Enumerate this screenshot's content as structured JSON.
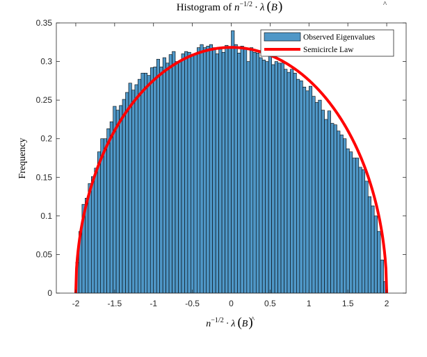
{
  "chart_data": {
    "type": "bar",
    "title": "Histogram of n^{-1/2} · λ(B̂)",
    "title_parts": {
      "prefix": "Histogram of ",
      "n": "n",
      "exponent": "−1/2",
      "dot": "·",
      "lambda": "λ",
      "open": "(",
      "b": "B",
      "hat": "^",
      "close": ")"
    },
    "xlabel_parts": {
      "n": "n",
      "exponent": "−1/2",
      "dot": "·",
      "lambda": "λ",
      "open": "(",
      "b": "B",
      "hat": "^",
      "close": ")"
    },
    "ylabel": "Frequency",
    "xlim": [
      -2.25,
      2.25
    ],
    "ylim": [
      0,
      0.35
    ],
    "x_ticks": [
      -2,
      -1.5,
      -1,
      -0.5,
      0,
      0.5,
      1,
      1.5,
      2
    ],
    "x_tick_labels": [
      "-2",
      "-1.5",
      "-1",
      "-0.5",
      "0",
      "0.5",
      "1",
      "1.5",
      "2"
    ],
    "y_ticks": [
      0,
      0.05,
      0.1,
      0.15,
      0.2,
      0.25,
      0.3,
      0.35
    ],
    "y_tick_labels": [
      "0",
      "0.05",
      "0.1",
      "0.15",
      "0.2",
      "0.25",
      "0.3",
      "0.35"
    ],
    "bin_start": -2,
    "bin_width": 0.04,
    "bin_values": [
      0.04,
      0.08,
      0.115,
      0.123,
      0.142,
      0.151,
      0.162,
      0.183,
      0.2,
      0.2,
      0.213,
      0.222,
      0.242,
      0.237,
      0.243,
      0.251,
      0.26,
      0.272,
      0.263,
      0.27,
      0.277,
      0.285,
      0.285,
      0.282,
      0.292,
      0.293,
      0.303,
      0.293,
      0.305,
      0.298,
      0.309,
      0.313,
      0.3,
      0.3,
      0.31,
      0.313,
      0.312,
      0.309,
      0.31,
      0.318,
      0.322,
      0.318,
      0.32,
      0.322,
      0.318,
      0.31,
      0.316,
      0.312,
      0.321,
      0.319,
      0.34,
      0.322,
      0.311,
      0.32,
      0.316,
      0.3,
      0.318,
      0.312,
      0.311,
      0.305,
      0.302,
      0.3,
      0.31,
      0.296,
      0.3,
      0.298,
      0.298,
      0.29,
      0.286,
      0.29,
      0.285,
      0.277,
      0.275,
      0.267,
      0.262,
      0.268,
      0.255,
      0.247,
      0.25,
      0.237,
      0.225,
      0.236,
      0.22,
      0.218,
      0.21,
      0.205,
      0.2,
      0.187,
      0.183,
      0.175,
      0.175,
      0.163,
      0.16,
      0.145,
      0.125,
      0.113,
      0.1,
      0.08,
      0.043,
      0.015
    ],
    "series": [
      {
        "name": "Observed Eigenvalues",
        "kind": "histogram",
        "color": "#4f97c7",
        "edge_color": "#000000"
      },
      {
        "name": "Semicircle Law",
        "kind": "line",
        "color": "#ff0000",
        "formula": "sqrt(4 - x^2) / (2*pi)",
        "domain": [
          -2,
          2
        ]
      }
    ],
    "legend_position": "top-right",
    "grid": false
  }
}
